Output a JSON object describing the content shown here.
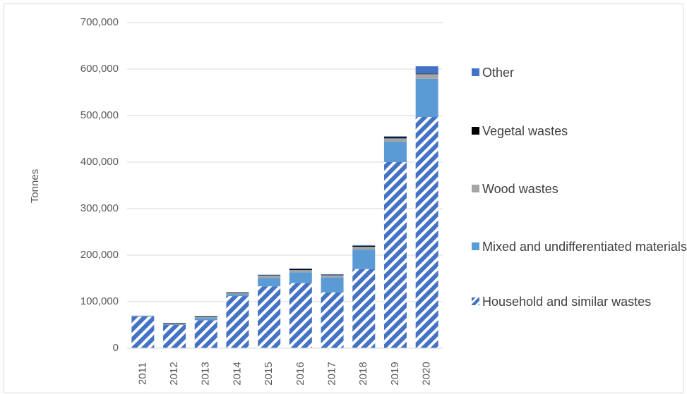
{
  "chart_data": {
    "type": "stacked_bar",
    "y_label": "Tonnes",
    "categories": [
      "2011",
      "2012",
      "2013",
      "2014",
      "2015",
      "2016",
      "2017",
      "2018",
      "2019",
      "2020"
    ],
    "series": [
      {
        "name": "Household and similar wastes",
        "color": "#4472c4",
        "pattern": "diagonal",
        "values": [
          68000,
          50000,
          60000,
          112000,
          133000,
          140000,
          120000,
          170000,
          400000,
          497000
        ]
      },
      {
        "name": "Mixed and undifferentiated materials",
        "color": "#5b9bd5",
        "values": [
          1000,
          1000,
          5000,
          4000,
          18000,
          23000,
          32000,
          42000,
          44000,
          82000
        ]
      },
      {
        "name": "Wood wastes",
        "color": "#a5a5a5",
        "values": [
          500,
          1000,
          2000,
          2000,
          5000,
          5000,
          5000,
          6000,
          7000,
          10000
        ]
      },
      {
        "name": "Vegetal wastes",
        "color": "#000000",
        "values": [
          200,
          1500,
          1500,
          1500,
          1000,
          2000,
          1000,
          2000,
          3000,
          1000
        ]
      },
      {
        "name": "Other",
        "color": "#4472c4",
        "values": [
          200,
          500,
          500,
          500,
          1000,
          1500,
          1000,
          1500,
          1500,
          16000
        ]
      }
    ],
    "ylim": [
      0,
      700000
    ],
    "yticks": [
      0,
      {
        "value": 100000,
        "label": "100,000"
      },
      {
        "value": 200000,
        "label": "200,000"
      },
      {
        "value": 300000,
        "label": "300,000"
      },
      {
        "value": 400000,
        "label": "400,000"
      },
      {
        "value": 500000,
        "label": "500,000"
      },
      {
        "value": 600000,
        "label": "600,000"
      },
      {
        "value": 700000,
        "label": "700,000"
      }
    ],
    "grid": true,
    "legend": "right"
  }
}
